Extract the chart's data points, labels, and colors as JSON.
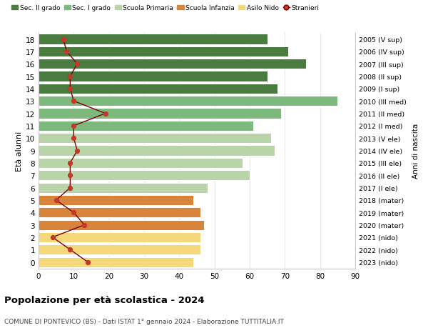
{
  "ages": [
    18,
    17,
    16,
    15,
    14,
    13,
    12,
    11,
    10,
    9,
    8,
    7,
    6,
    5,
    4,
    3,
    2,
    1,
    0
  ],
  "right_labels": [
    "2005 (V sup)",
    "2006 (IV sup)",
    "2007 (III sup)",
    "2008 (II sup)",
    "2009 (I sup)",
    "2010 (III med)",
    "2011 (II med)",
    "2012 (I med)",
    "2013 (V ele)",
    "2014 (IV ele)",
    "2015 (III ele)",
    "2016 (II ele)",
    "2017 (I ele)",
    "2018 (mater)",
    "2019 (mater)",
    "2020 (mater)",
    "2021 (nido)",
    "2022 (nido)",
    "2023 (nido)"
  ],
  "bar_values": [
    65,
    71,
    76,
    65,
    68,
    85,
    69,
    61,
    66,
    67,
    58,
    60,
    48,
    44,
    46,
    47,
    46,
    46,
    44
  ],
  "bar_colors": [
    "#4a7c3f",
    "#4a7c3f",
    "#4a7c3f",
    "#4a7c3f",
    "#4a7c3f",
    "#7db87d",
    "#7db87d",
    "#7db87d",
    "#b8d4a8",
    "#b8d4a8",
    "#b8d4a8",
    "#b8d4a8",
    "#b8d4a8",
    "#d9843b",
    "#d9843b",
    "#d9843b",
    "#f5d87a",
    "#f5d87a",
    "#f5d87a"
  ],
  "stranieri_values": [
    7,
    8,
    11,
    9,
    9,
    10,
    19,
    10,
    10,
    11,
    9,
    9,
    9,
    5,
    10,
    13,
    4,
    9,
    14
  ],
  "legend_labels": [
    "Sec. II grado",
    "Sec. I grado",
    "Scuola Primaria",
    "Scuola Infanzia",
    "Asilo Nido",
    "Stranieri"
  ],
  "legend_colors": [
    "#4a7c3f",
    "#7db87d",
    "#b8d4a8",
    "#d9843b",
    "#f5d87a",
    "#c0392b"
  ],
  "ylabel_label": "Età alunni",
  "right_ylabel": "Anni di nascita",
  "title": "Popolazione per età scolastica - 2024",
  "subtitle": "COMUNE DI PONTEVICO (BS) - Dati ISTAT 1° gennaio 2024 - Elaborazione TUTTITALIA.IT",
  "xlim": [
    0,
    90
  ],
  "xticks": [
    0,
    10,
    20,
    30,
    40,
    50,
    60,
    70,
    80,
    90
  ],
  "bg_color": "#ffffff",
  "grid_color": "#e8e8e8",
  "bar_height": 0.82
}
